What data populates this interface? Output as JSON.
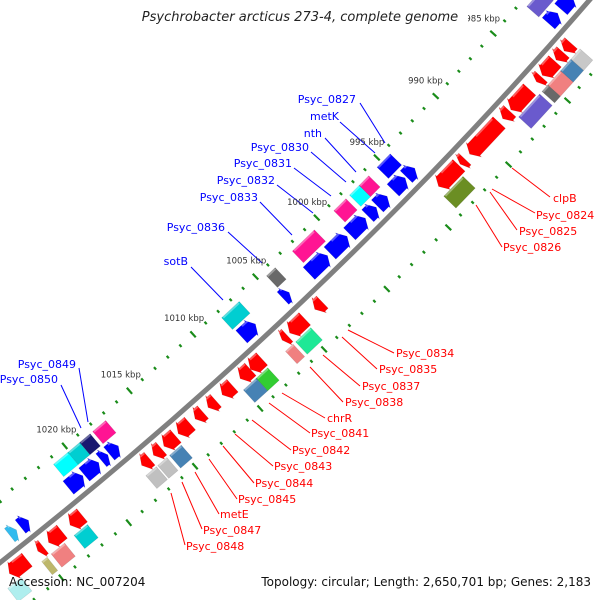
{
  "title": "Psychrobacter arcticus 273-4, complete genome",
  "footer": {
    "accession": "Accession: NC_007204",
    "summary": "Topology: circular; Length: 2,650,701 bp; Genes: 2,183"
  },
  "colors": {
    "backbone": "#808080",
    "ticks": "#1a8c1a",
    "forward_label": "#0000ff",
    "reverse_label": "#ff0000",
    "forward_cds": "#0000ff",
    "reverse_cds": "#ff0000"
  },
  "ruler": {
    "unit": "kbp",
    "minor_step_kbp": 1,
    "major_step_kbp": 5,
    "range_kbp": [
      979,
      1028
    ],
    "labels": [
      "985 kbp",
      "990 kbp",
      "995 kbp",
      "1000 kbp",
      "1005 kbp",
      "1010 kbp",
      "1015 kbp",
      "1020 kbp"
    ],
    "label_positions_kbp": [
      985,
      990,
      995,
      1000,
      1005,
      1010,
      1015,
      1020
    ]
  },
  "genes": [
    {
      "strand": "+",
      "track": "cds",
      "start": 980.3,
      "end": 981.3,
      "color": "#0000ff"
    },
    {
      "strand": "+",
      "track": "cds",
      "start": 981.6,
      "end": 982.4,
      "color": "#0000ff"
    },
    {
      "strand": "+",
      "track": "cds",
      "start": 993.9,
      "end": 994.6,
      "color": "#0000ff"
    },
    {
      "strand": "+",
      "track": "cds",
      "start": 994.7,
      "end": 995.7,
      "color": "#0000ff"
    },
    {
      "strand": "+",
      "track": "cds",
      "start": 996.2,
      "end": 997.0,
      "color": "#0000ff"
    },
    {
      "strand": "+",
      "track": "cds",
      "start": 997.1,
      "end": 997.8,
      "color": "#0000ff"
    },
    {
      "strand": "+",
      "track": "cds",
      "start": 998.0,
      "end": 999.3,
      "color": "#0000ff"
    },
    {
      "strand": "+",
      "track": "cds",
      "start": 999.5,
      "end": 1000.9,
      "color": "#0000ff"
    },
    {
      "strand": "+",
      "track": "cds",
      "start": 1001.1,
      "end": 1002.6,
      "color": "#0000ff"
    },
    {
      "strand": "+",
      "track": "cds",
      "start": 1004.2,
      "end": 1004.7,
      "color": "#0000ff"
    },
    {
      "strand": "+",
      "track": "cds",
      "start": 1006.9,
      "end": 1008.0,
      "color": "#0000ff"
    },
    {
      "strand": "+",
      "track": "cds",
      "start": 1017.6,
      "end": 1018.3,
      "color": "#0000ff"
    },
    {
      "strand": "+",
      "track": "cds",
      "start": 1018.4,
      "end": 1018.9,
      "color": "#0000ff"
    },
    {
      "strand": "+",
      "track": "cds",
      "start": 1019.1,
      "end": 1020.2,
      "color": "#0000ff"
    },
    {
      "strand": "+",
      "track": "cds",
      "start": 1020.3,
      "end": 1021.4,
      "color": "#0000ff"
    },
    {
      "strand": "+",
      "track": "cds",
      "start": 1024.4,
      "end": 1025.0,
      "color": "#0000ff"
    },
    {
      "strand": "+",
      "track": "cds",
      "start": 1025.3,
      "end": 1025.8,
      "color": "#33bbee"
    },
    {
      "strand": "+",
      "track": "cog",
      "start": 980.4,
      "end": 981.1,
      "color": "#00ffff"
    },
    {
      "strand": "+",
      "track": "cog",
      "start": 981.2,
      "end": 982.5,
      "color": "#6a5acd"
    },
    {
      "strand": "+",
      "track": "cog",
      "start": 994.3,
      "end": 995.4,
      "color": "#0000ff"
    },
    {
      "strand": "+",
      "track": "cog",
      "start": 996.1,
      "end": 996.9,
      "color": "#ff1493"
    },
    {
      "strand": "+",
      "track": "cog",
      "start": 996.9,
      "end": 997.7,
      "color": "#00ffff"
    },
    {
      "strand": "+",
      "track": "cog",
      "start": 998.0,
      "end": 999.0,
      "color": "#ff1493"
    },
    {
      "strand": "+",
      "track": "cog",
      "start": 1000.6,
      "end": 1002.4,
      "color": "#ff1493"
    },
    {
      "strand": "+",
      "track": "cog",
      "start": 1003.8,
      "end": 1004.5,
      "color": "#696969"
    },
    {
      "strand": "+",
      "track": "cog",
      "start": 1006.7,
      "end": 1008.1,
      "color": "#00ced1"
    },
    {
      "strand": "+",
      "track": "cog",
      "start": 1017.2,
      "end": 1018.2,
      "color": "#ff1493"
    },
    {
      "strand": "+",
      "track": "cog",
      "start": 1018.4,
      "end": 1019.2,
      "color": "#191970"
    },
    {
      "strand": "+",
      "track": "cog",
      "start": 1019.2,
      "end": 1020.1,
      "color": "#00ced1"
    },
    {
      "strand": "+",
      "track": "cog",
      "start": 1020.1,
      "end": 1021.2,
      "color": "#00ffff"
    },
    {
      "strand": "-",
      "track": "cds",
      "start": 982.4,
      "end": 983.0,
      "color": "#ff0000"
    },
    {
      "strand": "-",
      "track": "cds",
      "start": 983.1,
      "end": 983.7,
      "color": "#ff0000"
    },
    {
      "strand": "-",
      "track": "cds",
      "start": 983.8,
      "end": 984.9,
      "color": "#ff0000"
    },
    {
      "strand": "-",
      "track": "cds",
      "start": 985.0,
      "end": 985.4,
      "color": "#ff0000"
    },
    {
      "strand": "-",
      "track": "cds",
      "start": 986.0,
      "end": 987.6,
      "color": "#ff0000"
    },
    {
      "strand": "-",
      "track": "cds",
      "start": 987.7,
      "end": 988.3,
      "color": "#ff0000"
    },
    {
      "strand": "-",
      "track": "cds",
      "start": 988.6,
      "end": 991.1,
      "color": "#ff0000"
    },
    {
      "strand": "-",
      "track": "cds",
      "start": 991.5,
      "end": 991.9,
      "color": "#ff0000"
    },
    {
      "strand": "-",
      "track": "cds",
      "start": 992.0,
      "end": 993.7,
      "color": "#ff0000"
    },
    {
      "strand": "-",
      "track": "cds",
      "start": 1003.2,
      "end": 1003.8,
      "color": "#ff0000"
    },
    {
      "strand": "-",
      "track": "cds",
      "start": 1004.6,
      "end": 1005.8,
      "color": "#ff0000"
    },
    {
      "strand": "-",
      "track": "cds",
      "start": 1006.0,
      "end": 1006.4,
      "color": "#ff0000"
    },
    {
      "strand": "-",
      "track": "cds",
      "start": 1008.0,
      "end": 1008.9,
      "color": "#ff0000"
    },
    {
      "strand": "-",
      "track": "cds",
      "start": 1008.9,
      "end": 1009.7,
      "color": "#ff0000"
    },
    {
      "strand": "-",
      "track": "cds",
      "start": 1010.3,
      "end": 1011.1,
      "color": "#ff0000"
    },
    {
      "strand": "-",
      "track": "cds",
      "start": 1011.6,
      "end": 1012.2,
      "color": "#ff0000"
    },
    {
      "strand": "-",
      "track": "cds",
      "start": 1012.6,
      "end": 1013.2,
      "color": "#ff0000"
    },
    {
      "strand": "-",
      "track": "cds",
      "start": 1013.6,
      "end": 1014.5,
      "color": "#ff0000"
    },
    {
      "strand": "-",
      "track": "cds",
      "start": 1014.7,
      "end": 1015.6,
      "color": "#ff0000"
    },
    {
      "strand": "-",
      "track": "cds",
      "start": 1015.8,
      "end": 1016.4,
      "color": "#ff0000"
    },
    {
      "strand": "-",
      "track": "cds",
      "start": 1016.7,
      "end": 1017.3,
      "color": "#ff0000"
    },
    {
      "strand": "-",
      "track": "cds",
      "start": 1021.8,
      "end": 1022.7,
      "color": "#ff0000"
    },
    {
      "strand": "-",
      "track": "cds",
      "start": 1023.3,
      "end": 1024.3,
      "color": "#ff0000"
    },
    {
      "strand": "-",
      "track": "cds",
      "start": 1024.7,
      "end": 1025.1,
      "color": "#ff0000"
    },
    {
      "strand": "-",
      "track": "cds",
      "start": 1025.9,
      "end": 1027.2,
      "color": "#ff0000"
    },
    {
      "strand": "-",
      "track": "cog",
      "start": 982.3,
      "end": 983.1,
      "color": "#c8c8c8"
    },
    {
      "strand": "-",
      "track": "cog",
      "start": 983.1,
      "end": 984.0,
      "color": "#4682b4"
    },
    {
      "strand": "-",
      "track": "cog",
      "start": 984.0,
      "end": 985.1,
      "color": "#f08080"
    },
    {
      "strand": "-",
      "track": "cog",
      "start": 985.1,
      "end": 985.6,
      "color": "#696969"
    },
    {
      "strand": "-",
      "track": "cog",
      "start": 985.8,
      "end": 987.6,
      "color": "#6a5acd"
    },
    {
      "strand": "-",
      "track": "cog",
      "start": 992.3,
      "end": 993.9,
      "color": "#6b8e23"
    },
    {
      "strand": "-",
      "track": "cog",
      "start": 1004.7,
      "end": 1005.9,
      "color": "#1ee896"
    },
    {
      "strand": "-",
      "track": "cog",
      "start": 1006.1,
      "end": 1006.7,
      "color": "#f08080"
    },
    {
      "strand": "-",
      "track": "cog",
      "start": 1008.1,
      "end": 1009.0,
      "color": "#32cd32"
    },
    {
      "strand": "-",
      "track": "cog",
      "start": 1009.0,
      "end": 1010.0,
      "color": "#4682b4"
    },
    {
      "strand": "-",
      "track": "cog",
      "start": 1014.8,
      "end": 1015.7,
      "color": "#4682b4"
    },
    {
      "strand": "-",
      "track": "cog",
      "start": 1015.9,
      "end": 1016.6,
      "color": "#c0c0c0"
    },
    {
      "strand": "-",
      "track": "cog",
      "start": 1016.7,
      "end": 1017.5,
      "color": "#c0c0c0"
    },
    {
      "strand": "-",
      "track": "cog",
      "start": 1021.9,
      "end": 1022.9,
      "color": "#00ced1"
    },
    {
      "strand": "-",
      "track": "cog",
      "start": 1023.6,
      "end": 1024.6,
      "color": "#f08080"
    },
    {
      "strand": "-",
      "track": "cog",
      "start": 1024.9,
      "end": 1025.3,
      "color": "#bdb76b"
    },
    {
      "strand": "-",
      "track": "cog",
      "start": 1026.8,
      "end": 1027.8,
      "color": "#afeeee"
    }
  ],
  "forward_labels": [
    "Psyc_0827",
    "metK",
    "nth",
    "Psyc_0830",
    "Psyc_0831",
    "Psyc_0832",
    "Psyc_0833",
    "Psyc_0836",
    "sotB",
    "Psyc_0849",
    "Psyc_0850"
  ],
  "reverse_labels": [
    "clpB",
    "Psyc_0824",
    "Psyc_0825",
    "Psyc_0826",
    "Psyc_0834",
    "Psyc_0835",
    "Psyc_0837",
    "Psyc_0838",
    "chrR",
    "Psyc_0841",
    "Psyc_0842",
    "Psyc_0843",
    "Psyc_0844",
    "Psyc_0845",
    "metE",
    "Psyc_0847",
    "Psyc_0848"
  ]
}
